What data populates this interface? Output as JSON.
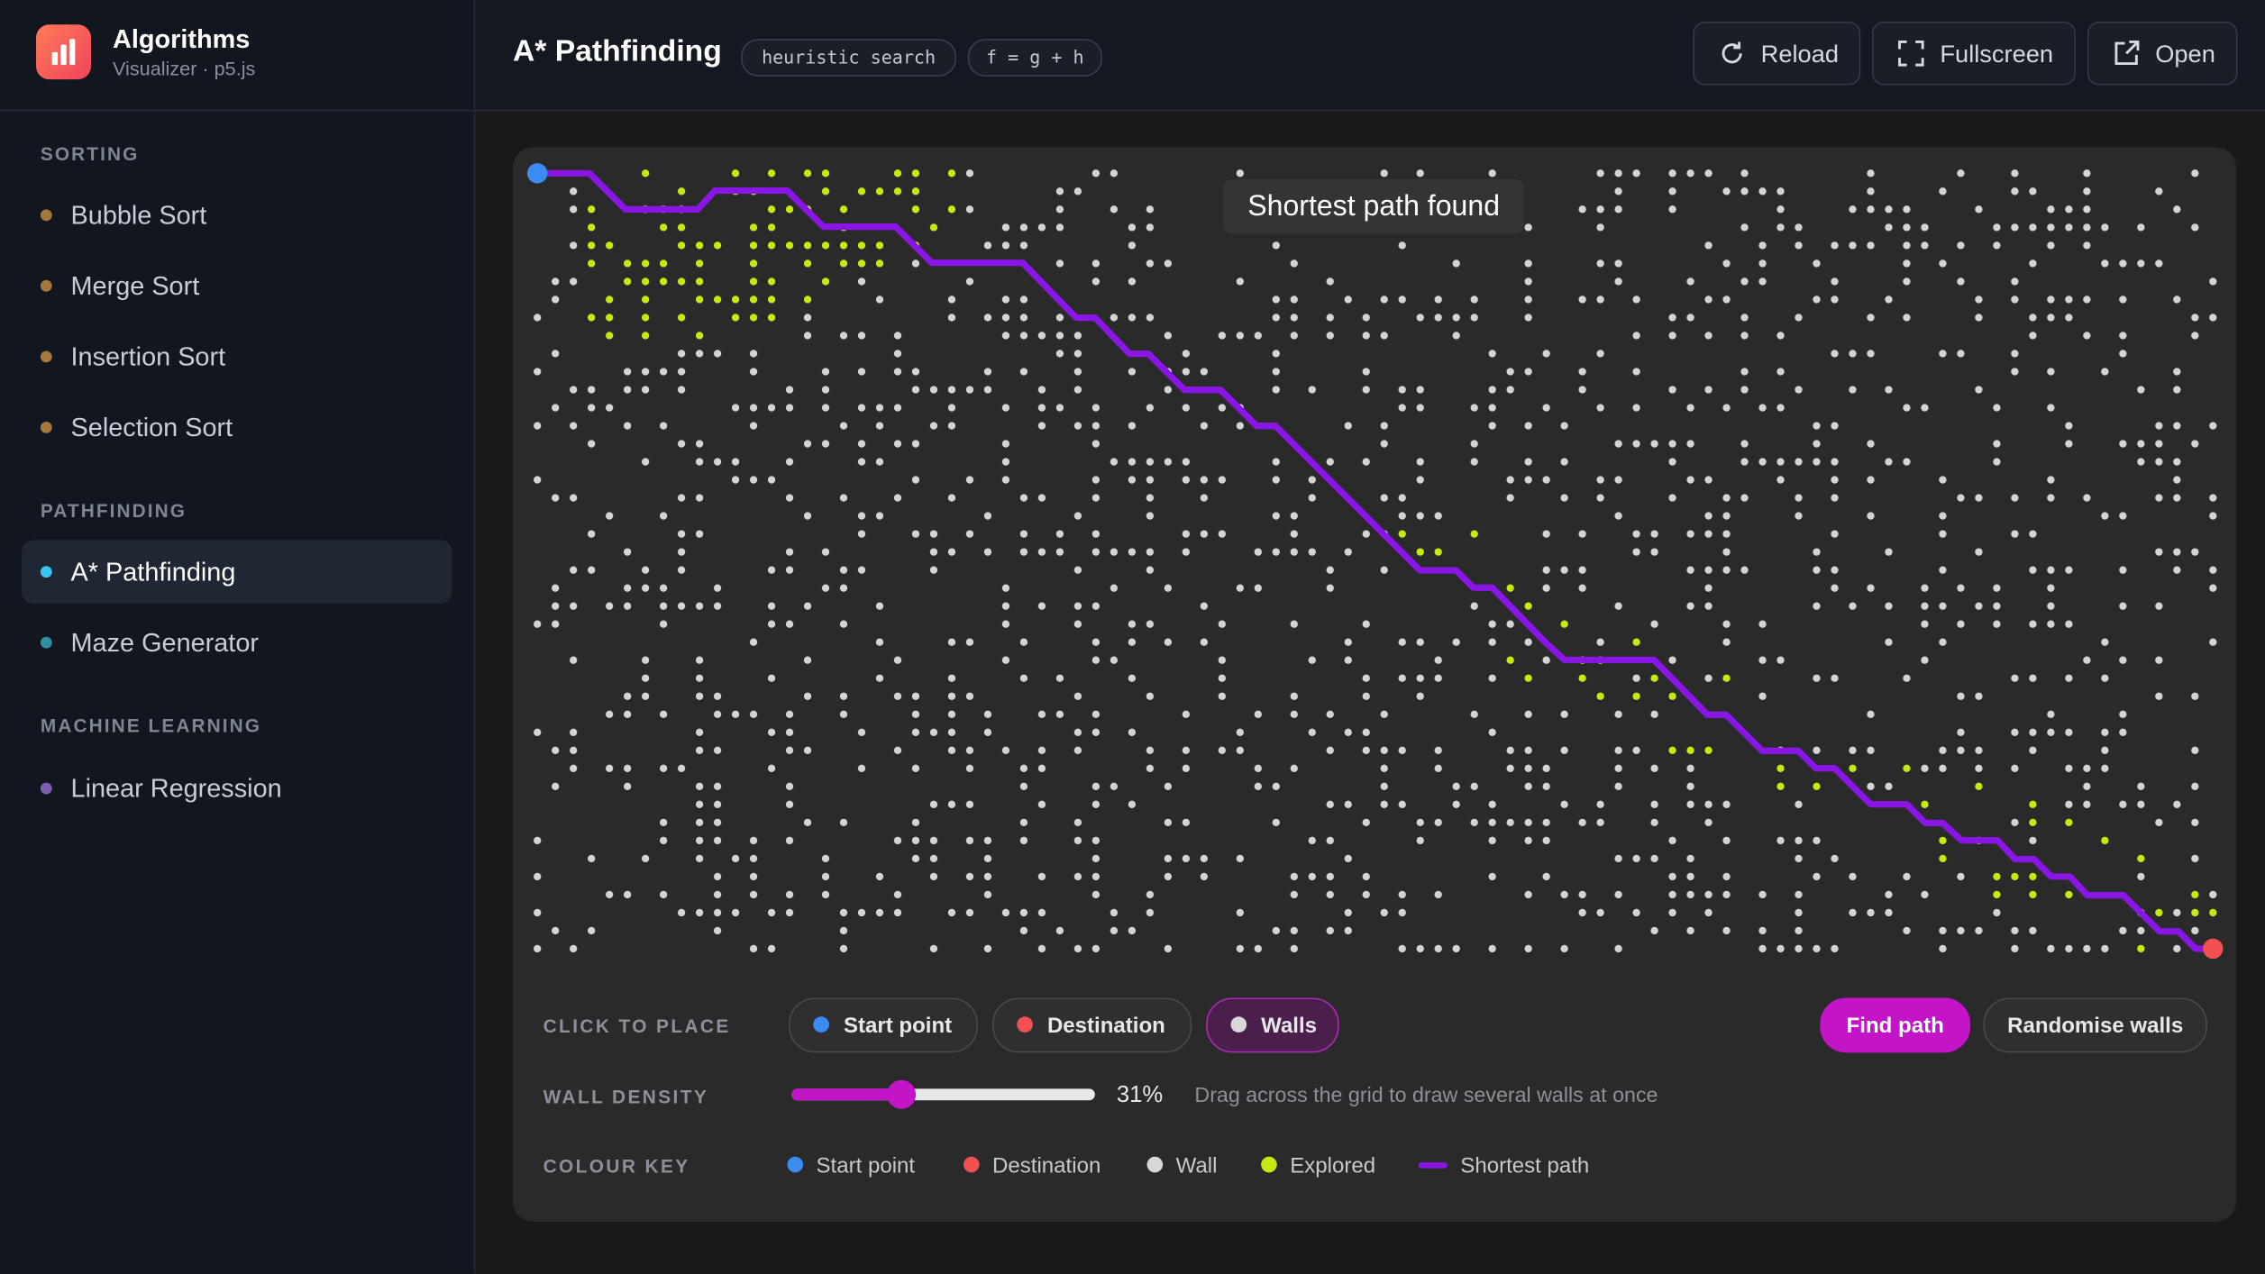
{
  "sidebar": {
    "brand": {
      "title": "Algorithms",
      "subtitle": "Visualizer · p5.js"
    },
    "sections": [
      {
        "label": "SORTING",
        "items": [
          "Bubble Sort",
          "Merge Sort",
          "Insertion Sort",
          "Selection Sort"
        ]
      },
      {
        "label": "PATHFINDING",
        "items": [
          "A* Pathfinding",
          "Maze Generator"
        ]
      },
      {
        "label": "MACHINE LEARNING",
        "items": [
          "Linear Regression"
        ]
      }
    ]
  },
  "header": {
    "title": "A* Pathfinding",
    "tags": [
      "heuristic search",
      "f = g + h"
    ],
    "buttons": [
      "Reload",
      "Fullscreen",
      "Open"
    ]
  },
  "canvas": {
    "status": "Shortest path found"
  },
  "controls": {
    "place": {
      "label": "CLICK TO PLACE",
      "options": [
        "Start point",
        "Destination",
        "Walls"
      ],
      "actions": [
        "Find path",
        "Randomise walls"
      ]
    },
    "density": {
      "label": "WALL DENSITY",
      "value": "31%",
      "hint": "Drag across the grid to draw several walls at once"
    },
    "key": {
      "label": "COLOUR KEY",
      "items": [
        "Start point",
        "Destination",
        "Wall",
        "Explored",
        "Shortest path"
      ]
    }
  }
}
